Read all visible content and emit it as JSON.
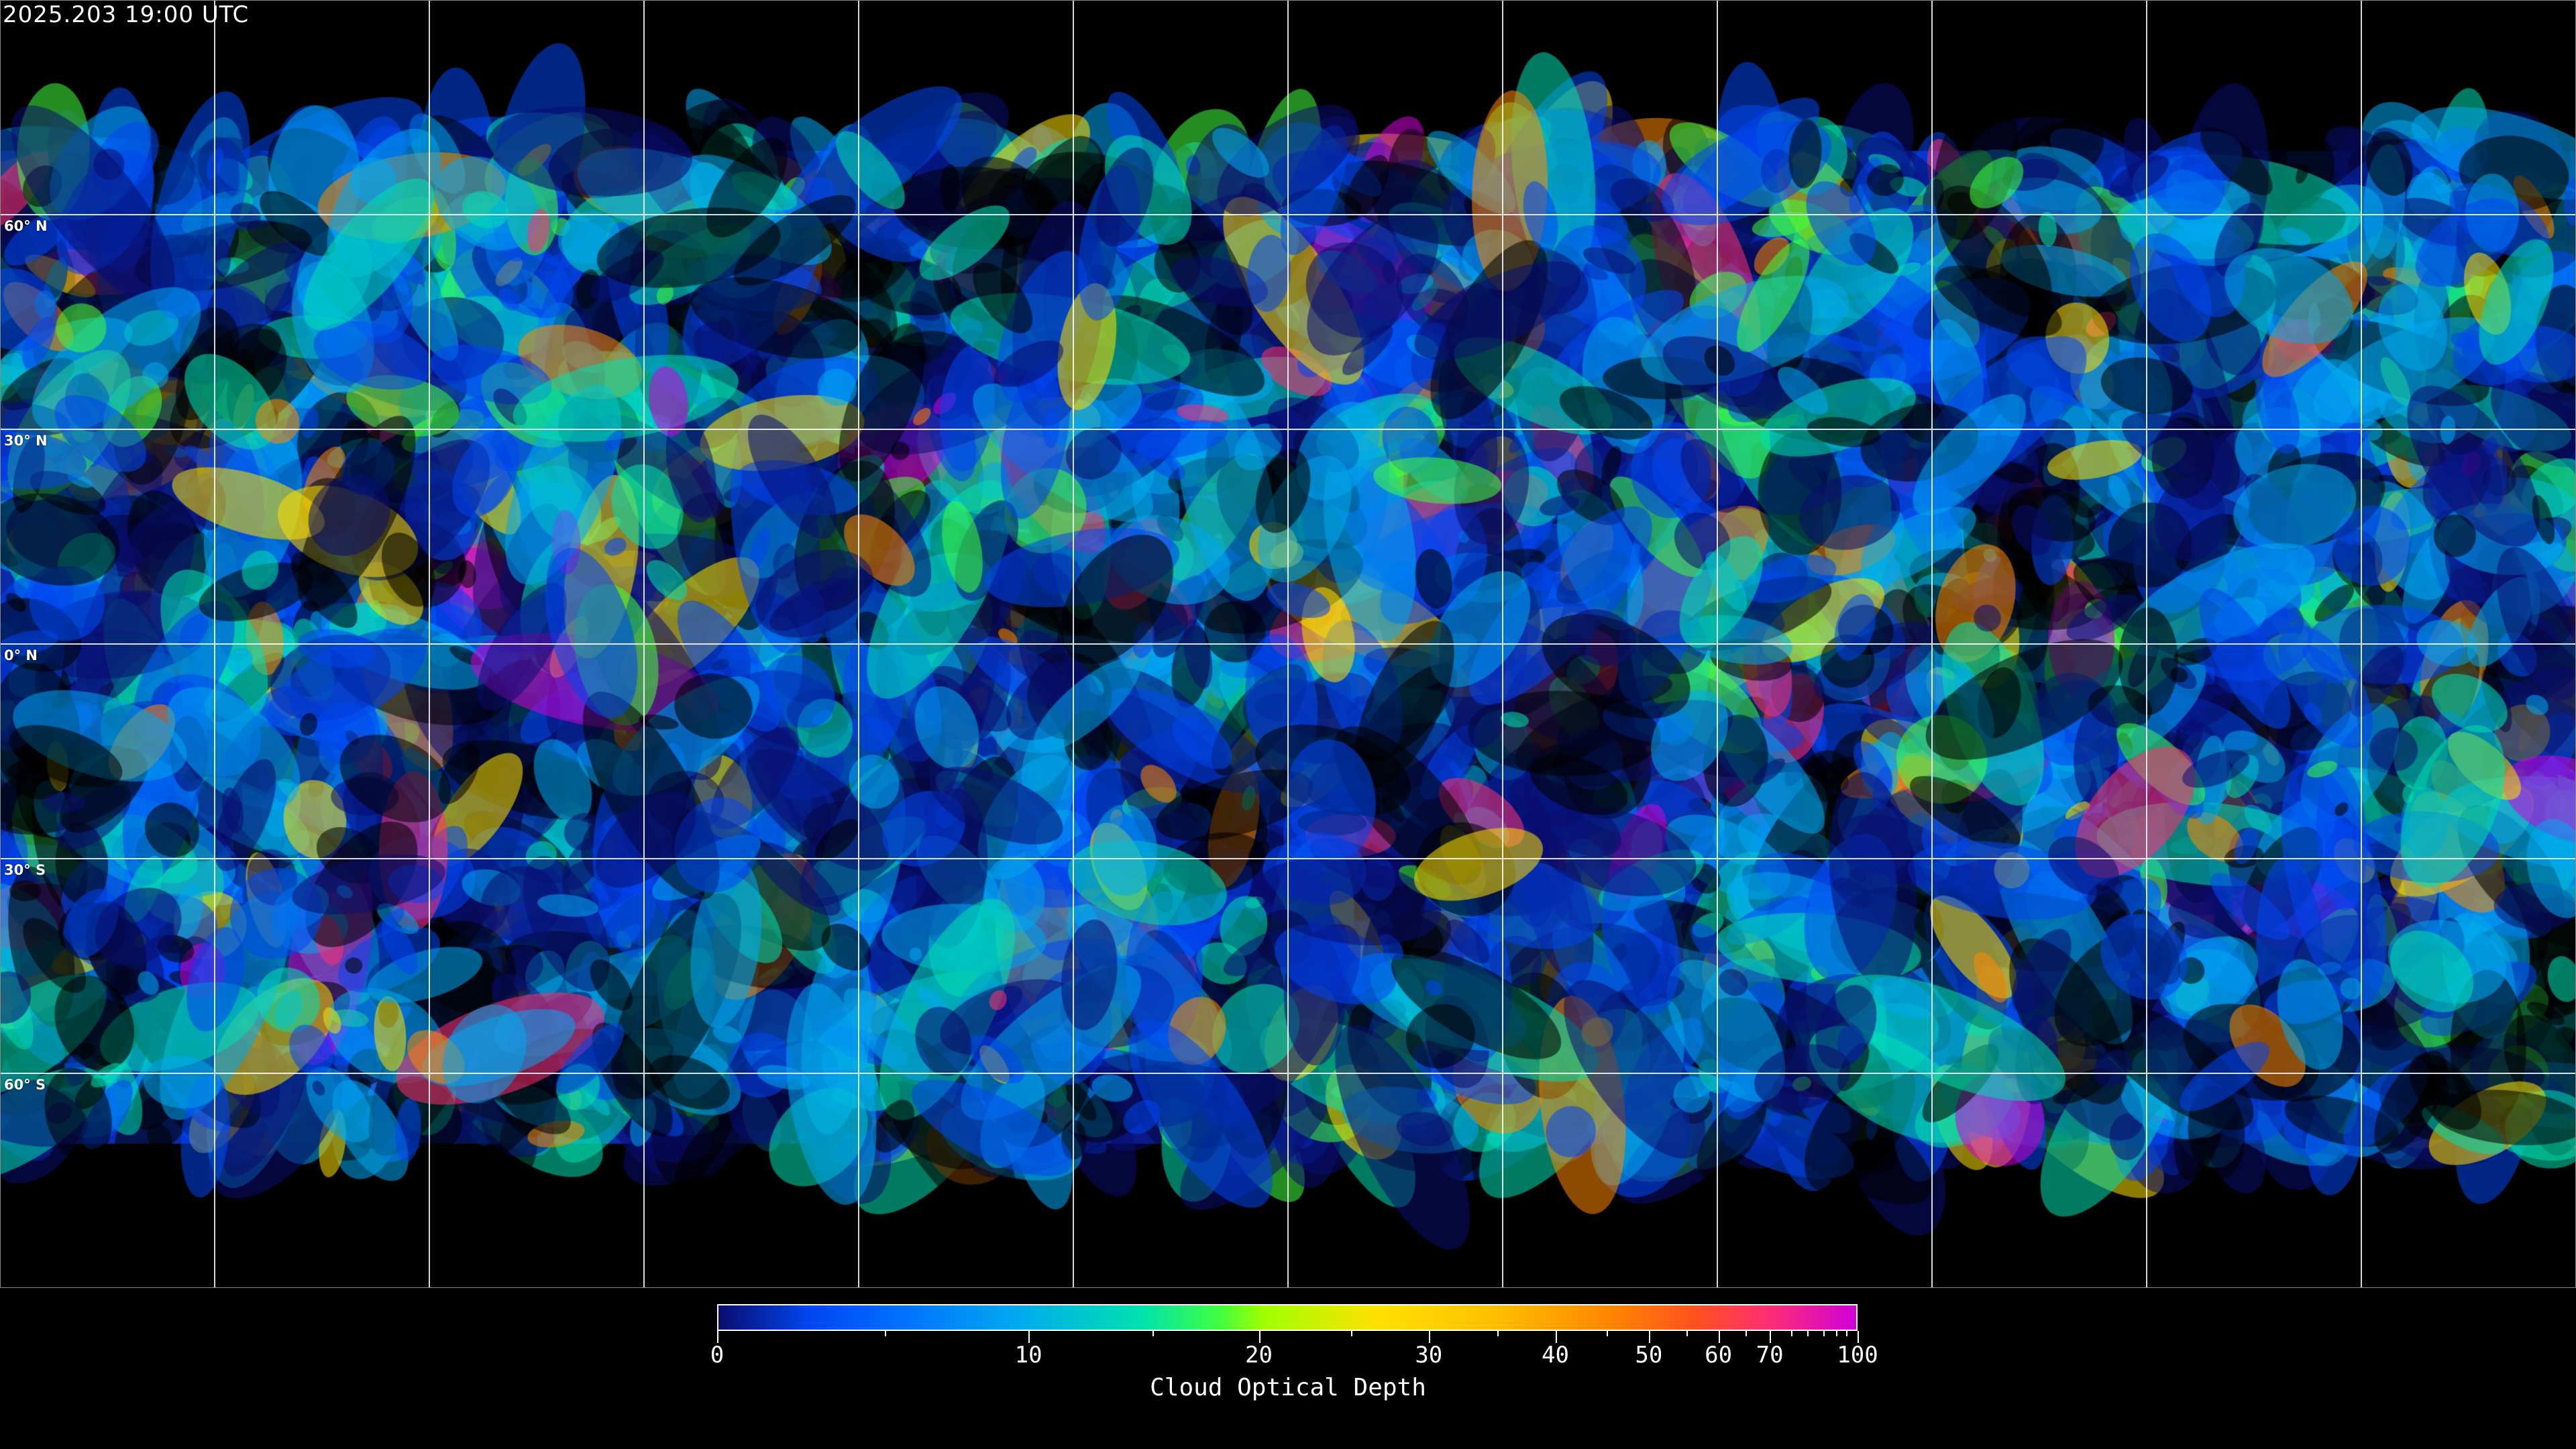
{
  "timestamp": "2025.203 19:00 UTC",
  "map": {
    "projection": "equirectangular",
    "gridline_spacing_degrees": 30,
    "latitude_labels": [
      "60° N",
      "30° N",
      "0° N",
      "30° S",
      "60° S"
    ],
    "gridline_color": "#ffffff",
    "coastline_color": "#ffffff"
  },
  "colorbar": {
    "title": "Cloud Optical Depth",
    "range": [
      0,
      100
    ],
    "major_ticks": [
      "0",
      "10",
      "20",
      "30",
      "40",
      "50",
      "60",
      "70",
      "100"
    ],
    "minor_ticks": [
      5,
      15,
      25,
      35,
      45,
      55,
      65,
      75,
      80,
      85,
      90,
      95
    ],
    "colors": [
      "#0a0d6e",
      "#0046f0",
      "#00a8f0",
      "#00e0b0",
      "#40ff40",
      "#a0ff00",
      "#ffe000",
      "#ff8800",
      "#ff5020",
      "#ff3070",
      "#d000d8"
    ]
  }
}
